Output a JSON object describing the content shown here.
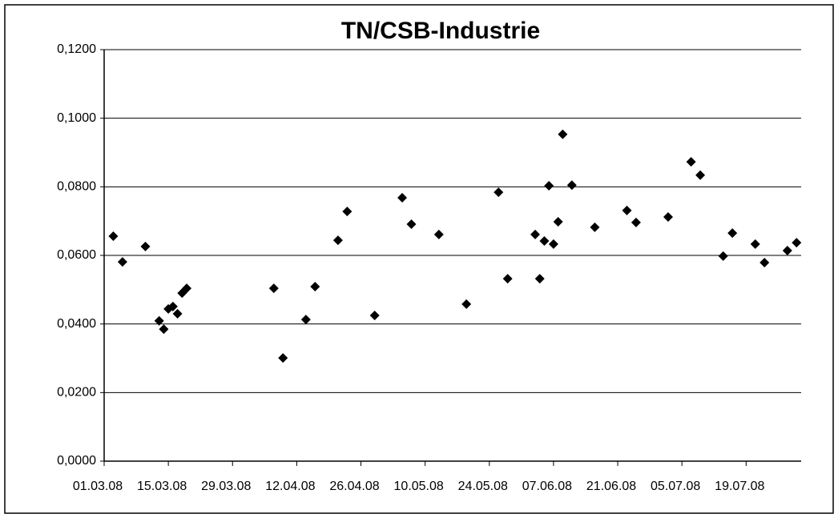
{
  "chart_data": {
    "type": "scatter",
    "title": "TN/CSB-Industrie",
    "x": [
      "2008-03-03",
      "2008-03-05",
      "2008-03-10",
      "2008-03-13",
      "2008-03-14",
      "2008-03-15",
      "2008-03-16",
      "2008-03-17",
      "2008-03-18",
      "2008-03-19",
      "2008-04-07",
      "2008-04-09",
      "2008-04-14",
      "2008-04-16",
      "2008-04-21",
      "2008-04-23",
      "2008-04-29",
      "2008-05-05",
      "2008-05-07",
      "2008-05-13",
      "2008-05-19",
      "2008-05-26",
      "2008-05-28",
      "2008-06-03",
      "2008-06-04",
      "2008-06-05",
      "2008-06-06",
      "2008-06-07",
      "2008-06-08",
      "2008-06-09",
      "2008-06-11",
      "2008-06-16",
      "2008-06-23",
      "2008-06-25",
      "2008-07-02",
      "2008-07-07",
      "2008-07-09",
      "2008-07-14",
      "2008-07-16",
      "2008-07-21",
      "2008-07-23",
      "2008-07-28",
      "2008-07-30"
    ],
    "values": [
      0.0656,
      0.0581,
      0.0626,
      0.0409,
      0.0385,
      0.0444,
      0.0451,
      0.043,
      0.049,
      0.0504,
      0.0504,
      0.0301,
      0.0413,
      0.0509,
      0.0644,
      0.0728,
      0.0425,
      0.0768,
      0.0691,
      0.0661,
      0.0458,
      0.0784,
      0.0532,
      0.0661,
      0.0532,
      0.0642,
      0.0803,
      0.0633,
      0.0698,
      0.0953,
      0.0805,
      0.0682,
      0.0731,
      0.0696,
      0.0712,
      0.0873,
      0.0834,
      0.0598,
      0.0665,
      0.0633,
      0.0579,
      0.0614,
      0.0637
    ],
    "color": "#000000",
    "xlim": [
      "2008-03-01",
      "2008-07-31"
    ],
    "xticks": [
      {
        "value": "2008-03-01",
        "label": "01.03.08"
      },
      {
        "value": "2008-03-15",
        "label": "15.03.08"
      },
      {
        "value": "2008-03-29",
        "label": "29.03.08"
      },
      {
        "value": "2008-04-12",
        "label": "12.04.08"
      },
      {
        "value": "2008-04-26",
        "label": "26.04.08"
      },
      {
        "value": "2008-05-10",
        "label": "10.05.08"
      },
      {
        "value": "2008-05-24",
        "label": "24.05.08"
      },
      {
        "value": "2008-06-07",
        "label": "07.06.08"
      },
      {
        "value": "2008-06-21",
        "label": "21.06.08"
      },
      {
        "value": "2008-07-05",
        "label": "05.07.08"
      },
      {
        "value": "2008-07-19",
        "label": "19.07.08"
      }
    ],
    "ylim": [
      0,
      0.12
    ],
    "yticks": [
      {
        "value": 0,
        "label": "0,0000"
      },
      {
        "value": 0.02,
        "label": "0,0200"
      },
      {
        "value": 0.04,
        "label": "0,0400"
      },
      {
        "value": 0.06,
        "label": "0,0600"
      },
      {
        "value": 0.08,
        "label": "0,0800"
      },
      {
        "value": 0.1,
        "label": "0,1000"
      },
      {
        "value": 0.12,
        "label": "0,1200"
      }
    ],
    "grid": true
  }
}
